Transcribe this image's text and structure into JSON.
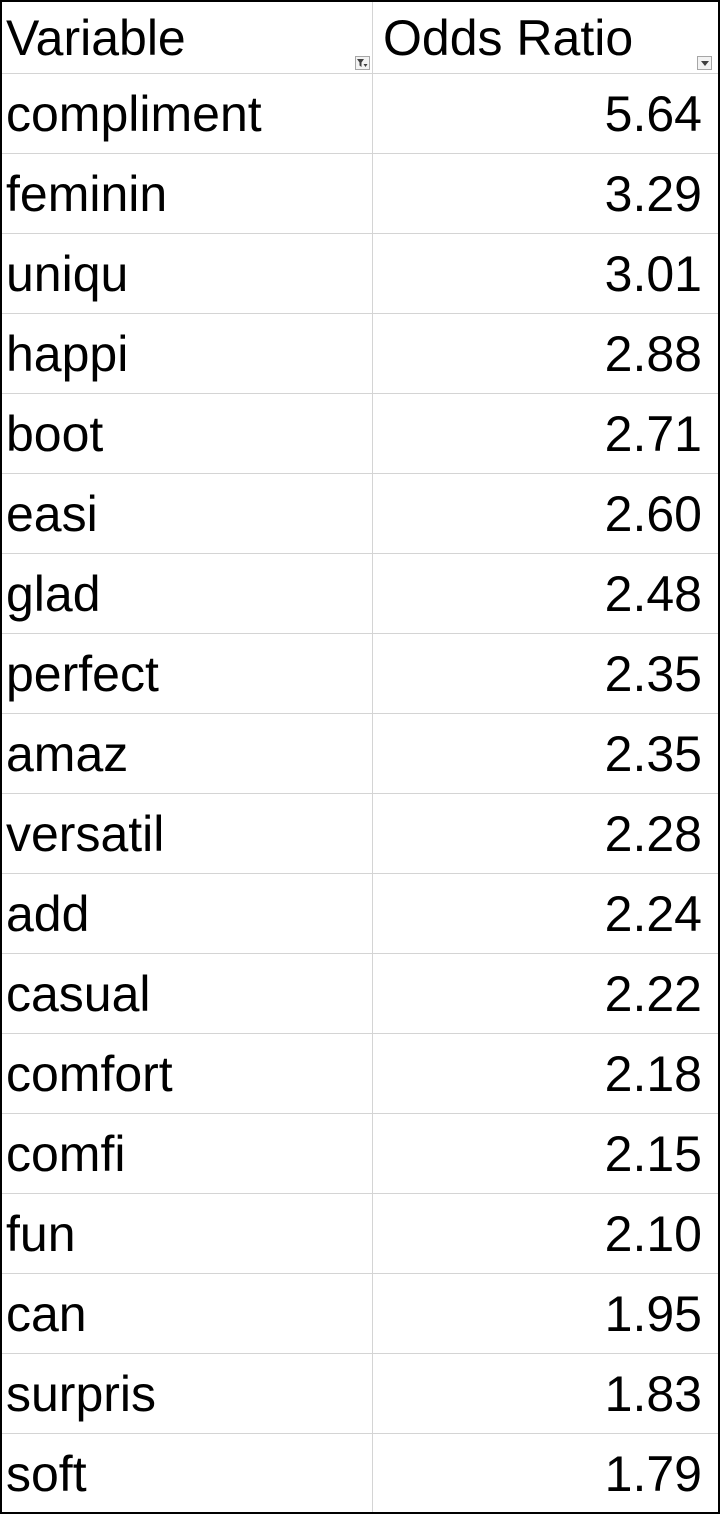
{
  "table": {
    "headers": {
      "variable": "Variable",
      "odds_ratio": "Odds Ratio"
    },
    "filter_icons": {
      "variable": "filter-applied-icon",
      "odds_ratio": "dropdown-arrow-icon"
    },
    "rows": [
      {
        "variable": "compliment",
        "odds_ratio": "5.64"
      },
      {
        "variable": "feminin",
        "odds_ratio": "3.29"
      },
      {
        "variable": "uniqu",
        "odds_ratio": "3.01"
      },
      {
        "variable": "happi",
        "odds_ratio": "2.88"
      },
      {
        "variable": "boot",
        "odds_ratio": "2.71"
      },
      {
        "variable": "easi",
        "odds_ratio": "2.60"
      },
      {
        "variable": "glad",
        "odds_ratio": "2.48"
      },
      {
        "variable": "perfect",
        "odds_ratio": "2.35"
      },
      {
        "variable": "amaz",
        "odds_ratio": "2.35"
      },
      {
        "variable": "versatil",
        "odds_ratio": "2.28"
      },
      {
        "variable": "add",
        "odds_ratio": "2.24"
      },
      {
        "variable": "casual",
        "odds_ratio": "2.22"
      },
      {
        "variable": "comfort",
        "odds_ratio": "2.18"
      },
      {
        "variable": "comfi",
        "odds_ratio": "2.15"
      },
      {
        "variable": "fun",
        "odds_ratio": "2.10"
      },
      {
        "variable": "can",
        "odds_ratio": "1.95"
      },
      {
        "variable": "surpris",
        "odds_ratio": "1.83"
      },
      {
        "variable": "soft",
        "odds_ratio": "1.79"
      }
    ]
  },
  "colors": {
    "gridline": "#d4d4d4",
    "border": "#000000",
    "text": "#000000"
  }
}
